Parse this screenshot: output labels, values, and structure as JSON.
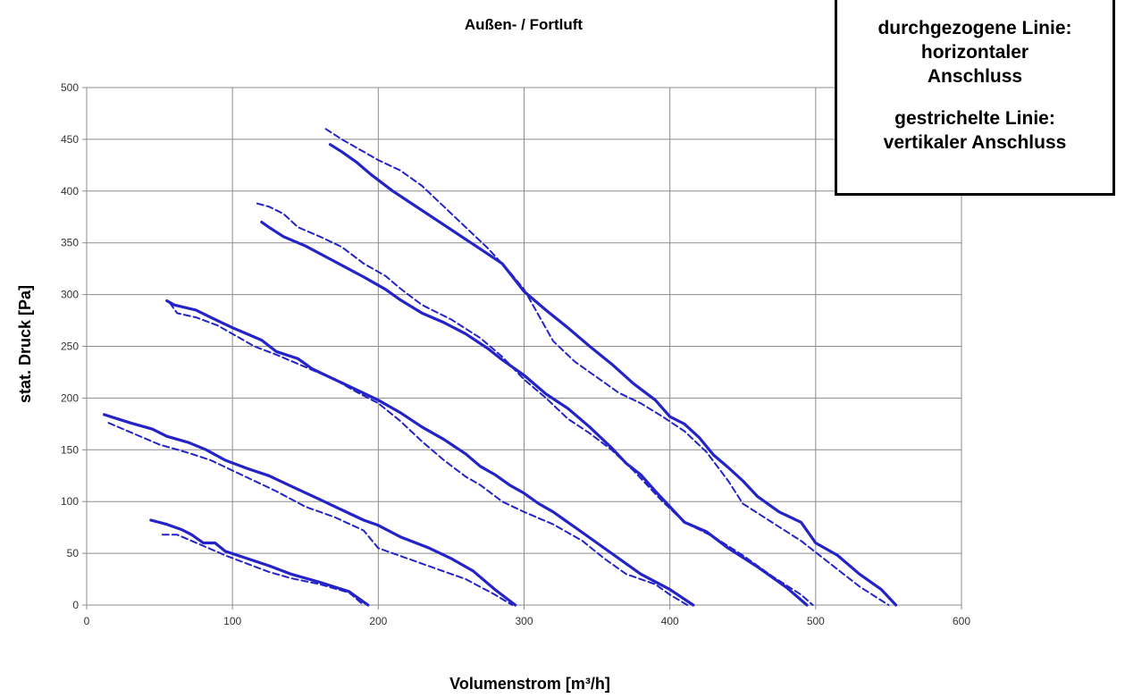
{
  "chart_data": {
    "type": "line",
    "title": "Außen- / Fortluft",
    "xlabel": "Volumenstrom [m³/h]",
    "ylabel": "stat. Druck [Pa]",
    "xlim": [
      0,
      600
    ],
    "ylim": [
      0,
      500
    ],
    "xticks": [
      0,
      100,
      200,
      300,
      400,
      500,
      600
    ],
    "yticks": [
      0,
      50,
      100,
      150,
      200,
      250,
      300,
      350,
      400,
      450,
      500
    ],
    "grid": true,
    "line_color": "#2323c8",
    "series": [
      {
        "style": "solid",
        "points": [
          [
            44,
            82
          ],
          [
            55,
            78
          ],
          [
            65,
            73
          ],
          [
            72,
            68
          ],
          [
            80,
            60
          ],
          [
            88,
            60
          ],
          [
            95,
            52
          ],
          [
            110,
            45
          ],
          [
            125,
            38
          ],
          [
            140,
            30
          ],
          [
            160,
            22
          ],
          [
            180,
            13
          ],
          [
            193,
            0
          ]
        ]
      },
      {
        "style": "dashed",
        "points": [
          [
            52,
            68
          ],
          [
            62,
            68
          ],
          [
            72,
            62
          ],
          [
            82,
            56
          ],
          [
            95,
            48
          ],
          [
            110,
            40
          ],
          [
            125,
            32
          ],
          [
            140,
            26
          ],
          [
            160,
            20
          ],
          [
            180,
            12
          ],
          [
            190,
            0
          ]
        ]
      },
      {
        "style": "solid",
        "points": [
          [
            12,
            184
          ],
          [
            30,
            176
          ],
          [
            45,
            170
          ],
          [
            55,
            163
          ],
          [
            70,
            157
          ],
          [
            82,
            150
          ],
          [
            95,
            140
          ],
          [
            110,
            132
          ],
          [
            125,
            125
          ],
          [
            140,
            115
          ],
          [
            160,
            102
          ],
          [
            175,
            92
          ],
          [
            190,
            82
          ],
          [
            200,
            77
          ],
          [
            215,
            66
          ],
          [
            235,
            55
          ],
          [
            250,
            45
          ],
          [
            265,
            33
          ],
          [
            280,
            15
          ],
          [
            294,
            0
          ]
        ]
      },
      {
        "style": "dashed",
        "points": [
          [
            15,
            176
          ],
          [
            30,
            167
          ],
          [
            50,
            155
          ],
          [
            70,
            147
          ],
          [
            85,
            140
          ],
          [
            100,
            130
          ],
          [
            115,
            120
          ],
          [
            130,
            110
          ],
          [
            150,
            95
          ],
          [
            170,
            85
          ],
          [
            190,
            72
          ],
          [
            200,
            55
          ],
          [
            220,
            45
          ],
          [
            240,
            35
          ],
          [
            260,
            25
          ],
          [
            280,
            10
          ],
          [
            292,
            0
          ]
        ]
      },
      {
        "style": "solid",
        "points": [
          [
            55,
            294
          ],
          [
            60,
            290
          ],
          [
            75,
            285
          ],
          [
            85,
            278
          ],
          [
            100,
            268
          ],
          [
            110,
            262
          ],
          [
            120,
            256
          ],
          [
            130,
            245
          ],
          [
            145,
            238
          ],
          [
            155,
            228
          ],
          [
            170,
            218
          ],
          [
            185,
            208
          ],
          [
            200,
            198
          ],
          [
            215,
            186
          ],
          [
            230,
            172
          ],
          [
            245,
            160
          ],
          [
            260,
            146
          ],
          [
            270,
            134
          ],
          [
            280,
            126
          ],
          [
            290,
            116
          ],
          [
            300,
            108
          ],
          [
            310,
            98
          ],
          [
            320,
            90
          ],
          [
            335,
            75
          ],
          [
            350,
            60
          ],
          [
            365,
            45
          ],
          [
            380,
            30
          ],
          [
            400,
            15
          ],
          [
            416,
            0
          ]
        ]
      },
      {
        "style": "dashed",
        "points": [
          [
            57,
            292
          ],
          [
            62,
            282
          ],
          [
            75,
            278
          ],
          [
            90,
            270
          ],
          [
            100,
            262
          ],
          [
            115,
            250
          ],
          [
            130,
            242
          ],
          [
            150,
            230
          ],
          [
            170,
            218
          ],
          [
            185,
            206
          ],
          [
            200,
            195
          ],
          [
            215,
            178
          ],
          [
            230,
            158
          ],
          [
            245,
            140
          ],
          [
            260,
            124
          ],
          [
            270,
            116
          ],
          [
            285,
            100
          ],
          [
            300,
            90
          ],
          [
            320,
            78
          ],
          [
            340,
            62
          ],
          [
            355,
            45
          ],
          [
            370,
            30
          ],
          [
            390,
            20
          ],
          [
            400,
            10
          ],
          [
            412,
            0
          ]
        ]
      },
      {
        "style": "solid",
        "points": [
          [
            120,
            370
          ],
          [
            125,
            365
          ],
          [
            135,
            356
          ],
          [
            150,
            347
          ],
          [
            170,
            332
          ],
          [
            190,
            317
          ],
          [
            205,
            305
          ],
          [
            215,
            295
          ],
          [
            230,
            282
          ],
          [
            245,
            273
          ],
          [
            260,
            262
          ],
          [
            275,
            248
          ],
          [
            285,
            237
          ],
          [
            300,
            222
          ],
          [
            315,
            204
          ],
          [
            330,
            190
          ],
          [
            345,
            172
          ],
          [
            360,
            152
          ],
          [
            370,
            137
          ],
          [
            380,
            126
          ],
          [
            390,
            110
          ],
          [
            400,
            95
          ],
          [
            410,
            80
          ],
          [
            425,
            71
          ],
          [
            440,
            55
          ],
          [
            460,
            37
          ],
          [
            480,
            17
          ],
          [
            494,
            0
          ]
        ]
      },
      {
        "style": "dashed",
        "points": [
          [
            117,
            388
          ],
          [
            125,
            385
          ],
          [
            135,
            378
          ],
          [
            145,
            365
          ],
          [
            160,
            356
          ],
          [
            175,
            346
          ],
          [
            190,
            330
          ],
          [
            205,
            318
          ],
          [
            215,
            306
          ],
          [
            230,
            290
          ],
          [
            250,
            276
          ],
          [
            270,
            258
          ],
          [
            285,
            240
          ],
          [
            300,
            218
          ],
          [
            315,
            200
          ],
          [
            330,
            180
          ],
          [
            345,
            166
          ],
          [
            360,
            150
          ],
          [
            375,
            130
          ],
          [
            395,
            100
          ],
          [
            410,
            80
          ],
          [
            430,
            66
          ],
          [
            450,
            48
          ],
          [
            470,
            28
          ],
          [
            490,
            10
          ],
          [
            498,
            0
          ]
        ]
      },
      {
        "style": "solid",
        "points": [
          [
            167,
            445
          ],
          [
            175,
            438
          ],
          [
            185,
            428
          ],
          [
            195,
            416
          ],
          [
            210,
            400
          ],
          [
            225,
            386
          ],
          [
            240,
            372
          ],
          [
            255,
            358
          ],
          [
            270,
            344
          ],
          [
            285,
            330
          ],
          [
            300,
            303
          ],
          [
            315,
            285
          ],
          [
            330,
            268
          ],
          [
            345,
            250
          ],
          [
            360,
            233
          ],
          [
            375,
            214
          ],
          [
            390,
            198
          ],
          [
            400,
            182
          ],
          [
            410,
            175
          ],
          [
            420,
            162
          ],
          [
            430,
            145
          ],
          [
            440,
            133
          ],
          [
            450,
            120
          ],
          [
            460,
            105
          ],
          [
            475,
            90
          ],
          [
            490,
            80
          ],
          [
            500,
            60
          ],
          [
            515,
            48
          ],
          [
            530,
            30
          ],
          [
            545,
            15
          ],
          [
            555,
            0
          ]
        ]
      },
      {
        "style": "dashed",
        "points": [
          [
            164,
            460
          ],
          [
            175,
            450
          ],
          [
            190,
            438
          ],
          [
            200,
            430
          ],
          [
            215,
            420
          ],
          [
            230,
            405
          ],
          [
            245,
            385
          ],
          [
            260,
            365
          ],
          [
            275,
            345
          ],
          [
            290,
            322
          ],
          [
            300,
            305
          ],
          [
            310,
            280
          ],
          [
            320,
            255
          ],
          [
            335,
            235
          ],
          [
            350,
            220
          ],
          [
            365,
            205
          ],
          [
            380,
            195
          ],
          [
            395,
            182
          ],
          [
            410,
            168
          ],
          [
            425,
            148
          ],
          [
            440,
            120
          ],
          [
            450,
            98
          ],
          [
            470,
            80
          ],
          [
            490,
            62
          ],
          [
            510,
            40
          ],
          [
            530,
            18
          ],
          [
            550,
            0
          ]
        ]
      }
    ]
  },
  "legend": {
    "solid_line_1": "durchgezogene Linie:",
    "solid_line_2": "horizontaler",
    "solid_line_3": "Anschluss",
    "dashed_line_1": "gestrichelte Linie:",
    "dashed_line_2": "vertikaler Anschluss"
  }
}
